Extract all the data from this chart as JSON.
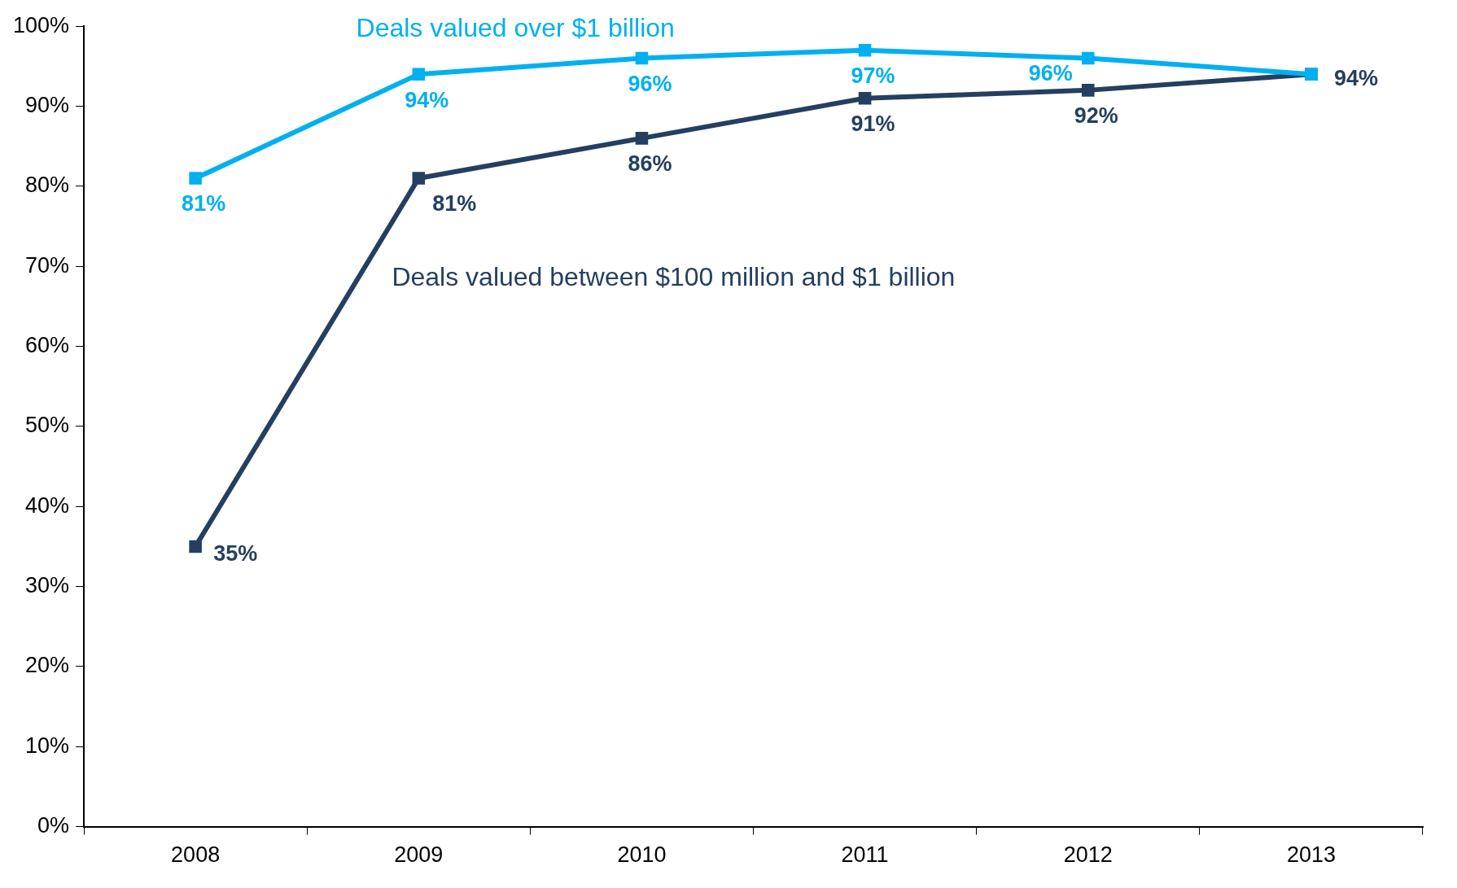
{
  "chart_data": {
    "type": "line",
    "categories": [
      "2008",
      "2009",
      "2010",
      "2011",
      "2012",
      "2013"
    ],
    "series": [
      {
        "name": "Deals valued over $1 billion",
        "color": "#00b0f0",
        "values": [
          81,
          94,
          96,
          97,
          96,
          94
        ],
        "value_labels": [
          "81%",
          "94%",
          "96%",
          "97%",
          "96%",
          null
        ]
      },
      {
        "name": "Deals valued between $100 million and $1 billion",
        "color": "#243f60",
        "values": [
          35,
          81,
          86,
          91,
          92,
          94
        ],
        "value_labels": [
          "35%",
          "81%",
          "86%",
          "91%",
          "92%",
          "94%"
        ]
      }
    ],
    "ylim": [
      0,
      100
    ],
    "yticks": [
      {
        "value": 0,
        "label": "0%"
      },
      {
        "value": 10,
        "label": "10%"
      },
      {
        "value": 20,
        "label": "20%"
      },
      {
        "value": 30,
        "label": "30%"
      },
      {
        "value": 40,
        "label": "40%"
      },
      {
        "value": 50,
        "label": "50%"
      },
      {
        "value": 60,
        "label": "60%"
      },
      {
        "value": 70,
        "label": "70%"
      },
      {
        "value": 80,
        "label": "80%"
      },
      {
        "value": 90,
        "label": "90%"
      },
      {
        "value": 100,
        "label": "100%"
      }
    ],
    "grid": false,
    "legend": false,
    "marker": "square",
    "line_style": "solid"
  }
}
